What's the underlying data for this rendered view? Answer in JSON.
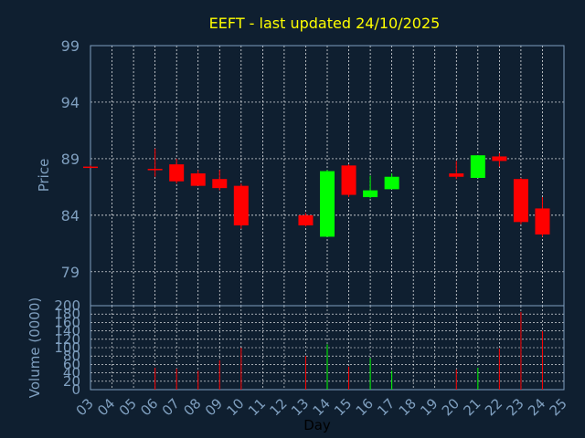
{
  "chart_data": {
    "type": "candlestick",
    "title": "EEFT - last updated 24/10/2025",
    "ylabel": "Price",
    "xlabel": "Day",
    "volume_label": "Volume (0000)",
    "ylim": [
      76,
      99
    ],
    "volume_ylim": [
      0,
      200
    ],
    "price_ticks": [
      "99",
      "94",
      "89",
      "84",
      "79"
    ],
    "volume_ticks": [
      "200",
      "180",
      "160",
      "140",
      "120",
      "100",
      "80",
      "60",
      "40",
      "20",
      "0"
    ],
    "days": [
      "03",
      "04",
      "05",
      "06",
      "07",
      "08",
      "09",
      "10",
      "11",
      "12",
      "13",
      "14",
      "15",
      "16",
      "17",
      "18",
      "19",
      "20",
      "21",
      "22",
      "23",
      "24",
      "25"
    ],
    "grid": true,
    "colors": {
      "background": "#0f1f30",
      "up": "#00ff00",
      "down": "#ff0000",
      "title": "#ffff00",
      "axis_text": "#7f9fbf",
      "xlabel_text": "#000000"
    },
    "candles": [
      {
        "day": "03",
        "open": 88.3,
        "high": 88.4,
        "low": 88.2,
        "close": 88.2,
        "volume": 0
      },
      {
        "day": "06",
        "open": 88.1,
        "high": 89.9,
        "low": 87.4,
        "close": 88.1,
        "volume": 52
      },
      {
        "day": "07",
        "open": 88.5,
        "high": 89.0,
        "low": 86.8,
        "close": 87.0,
        "volume": 50
      },
      {
        "day": "08",
        "open": 87.7,
        "high": 88.0,
        "low": 86.6,
        "close": 86.6,
        "volume": 45
      },
      {
        "day": "09",
        "open": 87.2,
        "high": 88.0,
        "low": 86.2,
        "close": 86.4,
        "volume": 70
      },
      {
        "day": "10",
        "open": 86.6,
        "high": 86.8,
        "low": 82.8,
        "close": 83.1,
        "volume": 100
      },
      {
        "day": "13",
        "open": 84.0,
        "high": 84.2,
        "low": 83.0,
        "close": 83.1,
        "volume": 80
      },
      {
        "day": "14",
        "open": 82.1,
        "high": 88.0,
        "low": 82.1,
        "close": 87.9,
        "volume": 108
      },
      {
        "day": "15",
        "open": 88.4,
        "high": 88.5,
        "low": 85.6,
        "close": 85.8,
        "volume": 55
      },
      {
        "day": "16",
        "open": 85.6,
        "high": 87.5,
        "low": 85.5,
        "close": 86.2,
        "volume": 75
      },
      {
        "day": "17",
        "open": 86.3,
        "high": 87.7,
        "low": 86.3,
        "close": 87.4,
        "volume": 45
      },
      {
        "day": "20",
        "open": 87.7,
        "high": 88.8,
        "low": 87.2,
        "close": 87.4,
        "volume": 48
      },
      {
        "day": "21",
        "open": 87.3,
        "high": 89.3,
        "low": 87.3,
        "close": 89.3,
        "volume": 52
      },
      {
        "day": "22",
        "open": 89.2,
        "high": 89.5,
        "low": 88.3,
        "close": 88.8,
        "volume": 98
      },
      {
        "day": "23",
        "open": 87.2,
        "high": 87.3,
        "low": 83.2,
        "close": 83.4,
        "volume": 185
      },
      {
        "day": "24",
        "open": 84.6,
        "high": 85.6,
        "low": 82.1,
        "close": 82.3,
        "volume": 140
      }
    ]
  }
}
